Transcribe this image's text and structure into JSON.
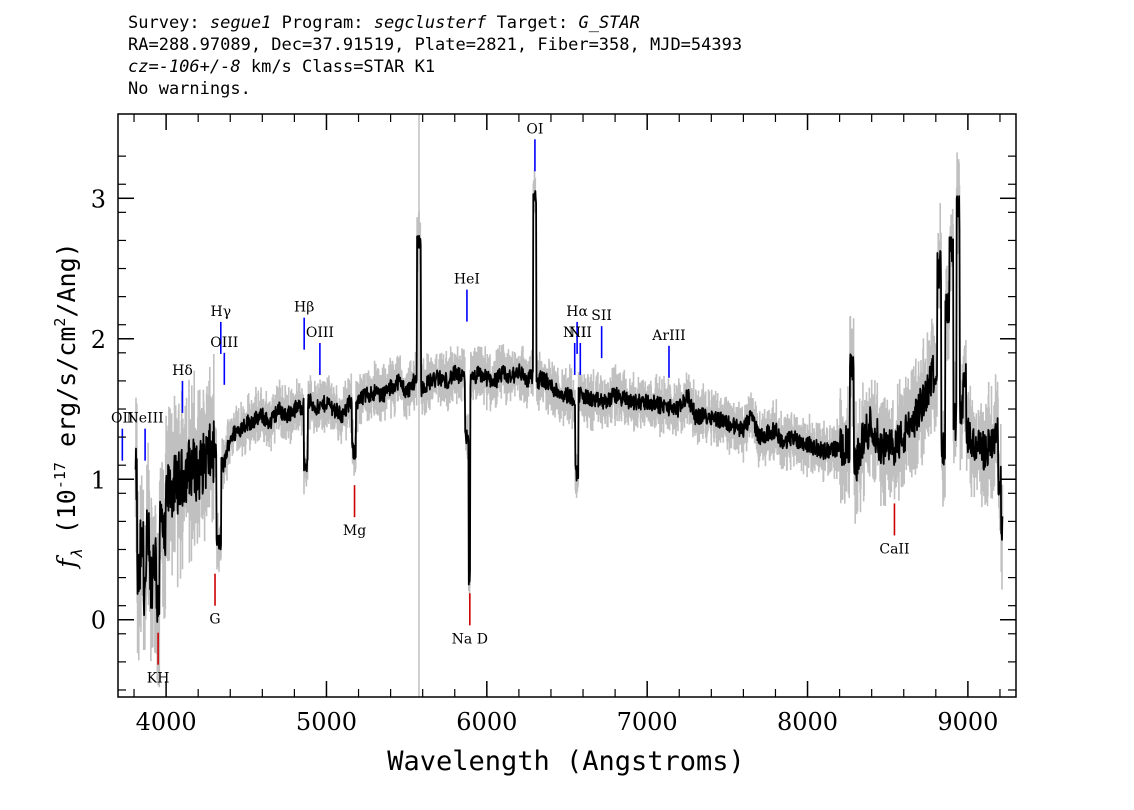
{
  "header": {
    "line1": {
      "survey_label": "Survey:",
      "survey": "segue1",
      "program_label": "Program:",
      "program": "segclusterf",
      "target_label": "Target:",
      "target": "G_STAR"
    },
    "line2": "RA=288.97089, Dec=37.91519, Plate=2821, Fiber=358, MJD=54393",
    "line3": {
      "cz": "cz=-106+/-8",
      "rest": "km/s Class=STAR K1"
    },
    "line4": "No warnings."
  },
  "colors": {
    "flux": "#000000",
    "error": "#c0c0c0",
    "emission_marker": "#0000ff",
    "absorption_marker": "#cc0000"
  },
  "chart_data": {
    "type": "line",
    "xlabel": "Wavelength (Angstroms)",
    "ylabel": "f_λ (10^-17 erg/s/cm^2/Ang)",
    "xlim": [
      3700,
      9300
    ],
    "ylim": [
      -0.55,
      3.6
    ],
    "xticks": [
      4000,
      5000,
      6000,
      7000,
      8000,
      9000
    ],
    "yticks": [
      0,
      1,
      2,
      3
    ],
    "sky_line": 5577,
    "series": [
      {
        "x": [
          3810,
          3830,
          3850,
          3870,
          3890,
          3910,
          3930,
          3950,
          3970,
          3990,
          4010,
          4050,
          4100,
          4150,
          4200,
          4250,
          4300,
          4330,
          4360,
          4400,
          4450,
          4500,
          4550,
          4600,
          4650,
          4700,
          4750,
          4800,
          4850,
          4870,
          4900,
          4950,
          5000,
          5050,
          5100,
          5150,
          5170,
          5200,
          5250,
          5300,
          5350,
          5400,
          5450,
          5500,
          5550,
          5578,
          5600,
          5650,
          5700,
          5750,
          5800,
          5850,
          5880,
          5893,
          5900,
          5950,
          6000,
          6050,
          6100,
          6150,
          6200,
          6250,
          6280,
          6300,
          6320,
          6350,
          6400,
          6450,
          6500,
          6540,
          6563,
          6580,
          6620,
          6680,
          6740,
          6800,
          6900,
          7000,
          7100,
          7200,
          7250,
          7300,
          7400,
          7500,
          7600,
          7650,
          7700,
          7800,
          7850,
          7900,
          8000,
          8100,
          8200,
          8250,
          8280,
          8300,
          8350,
          8400,
          8450,
          8500,
          8550,
          8600,
          8650,
          8700,
          8750,
          8800,
          8820,
          8850,
          8870,
          8900,
          8920,
          8940,
          8960,
          8980,
          9000,
          9050,
          9100,
          9150,
          9180,
          9200,
          9215
        ],
        "y": [
          1.0,
          0.3,
          0.5,
          0.25,
          0.6,
          0.3,
          0.45,
          0.15,
          0.7,
          0.55,
          0.9,
          0.95,
          1.0,
          1.1,
          1.05,
          1.15,
          1.2,
          0.55,
          1.1,
          1.3,
          1.35,
          1.4,
          1.42,
          1.45,
          1.4,
          1.5,
          1.45,
          1.5,
          1.52,
          1.1,
          1.55,
          1.5,
          1.55,
          1.5,
          1.45,
          1.55,
          1.2,
          1.55,
          1.6,
          1.62,
          1.6,
          1.65,
          1.7,
          1.62,
          1.7,
          2.7,
          1.65,
          1.7,
          1.72,
          1.7,
          1.75,
          1.72,
          1.3,
          0.3,
          1.7,
          1.75,
          1.72,
          1.7,
          1.75,
          1.72,
          1.78,
          1.7,
          1.74,
          3.0,
          1.7,
          1.72,
          1.66,
          1.62,
          1.6,
          1.58,
          1.05,
          1.6,
          1.58,
          1.56,
          1.55,
          1.6,
          1.55,
          1.55,
          1.52,
          1.5,
          1.6,
          1.45,
          1.45,
          1.4,
          1.35,
          1.45,
          1.3,
          1.35,
          1.25,
          1.3,
          1.25,
          1.2,
          1.22,
          1.25,
          1.75,
          1.1,
          1.3,
          1.4,
          1.25,
          1.2,
          1.25,
          1.3,
          1.4,
          1.5,
          1.65,
          1.8,
          2.5,
          1.2,
          2.2,
          2.6,
          1.4,
          2.9,
          1.5,
          1.7,
          1.3,
          1.25,
          1.2,
          1.25,
          1.3,
          1.0,
          0.6
        ]
      }
    ],
    "lines": [
      {
        "label": "OII",
        "wave": 3727,
        "y": 1.36,
        "kind": "emission"
      },
      {
        "label": "NeIII",
        "wave": 3869,
        "y": 1.36,
        "kind": "emission"
      },
      {
        "label": "Hδ",
        "wave": 4102,
        "y": 1.7,
        "kind": "emission"
      },
      {
        "label": "Hγ",
        "wave": 4341,
        "y": 2.12,
        "kind": "emission"
      },
      {
        "label": "OIII",
        "wave": 4363,
        "y": 1.9,
        "kind": "emission"
      },
      {
        "label": "Hβ",
        "wave": 4861,
        "y": 2.15,
        "kind": "emission"
      },
      {
        "label": "OIII",
        "wave": 4959,
        "y": 1.97,
        "kind": "emission"
      },
      {
        "label": "HeI",
        "wave": 5876,
        "y": 2.35,
        "kind": "emission"
      },
      {
        "label": "OI",
        "wave": 6300,
        "y": 3.42,
        "kind": "emission"
      },
      {
        "label": "NII",
        "wave": 6548,
        "y": 1.97,
        "kind": "emission"
      },
      {
        "label": "Hα",
        "wave": 6563,
        "y": 2.12,
        "kind": "emission"
      },
      {
        "label": "NII",
        "wave": 6583,
        "y": 1.97,
        "kind": "emission"
      },
      {
        "label": "SII",
        "wave": 6716,
        "y": 2.09,
        "kind": "emission"
      },
      {
        "label": "ArIII",
        "wave": 7136,
        "y": 1.95,
        "kind": "emission"
      },
      {
        "label": "KH",
        "wave": 3950,
        "y": -0.32,
        "kind": "absorption"
      },
      {
        "label": "G",
        "wave": 4305,
        "y": 0.1,
        "kind": "absorption"
      },
      {
        "label": "Mg",
        "wave": 5175,
        "y": 0.73,
        "kind": "absorption"
      },
      {
        "label": "Na D",
        "wave": 5894,
        "y": -0.04,
        "kind": "absorption"
      },
      {
        "label": "CaII",
        "wave": 8542,
        "y": 0.6,
        "kind": "absorption"
      }
    ]
  }
}
